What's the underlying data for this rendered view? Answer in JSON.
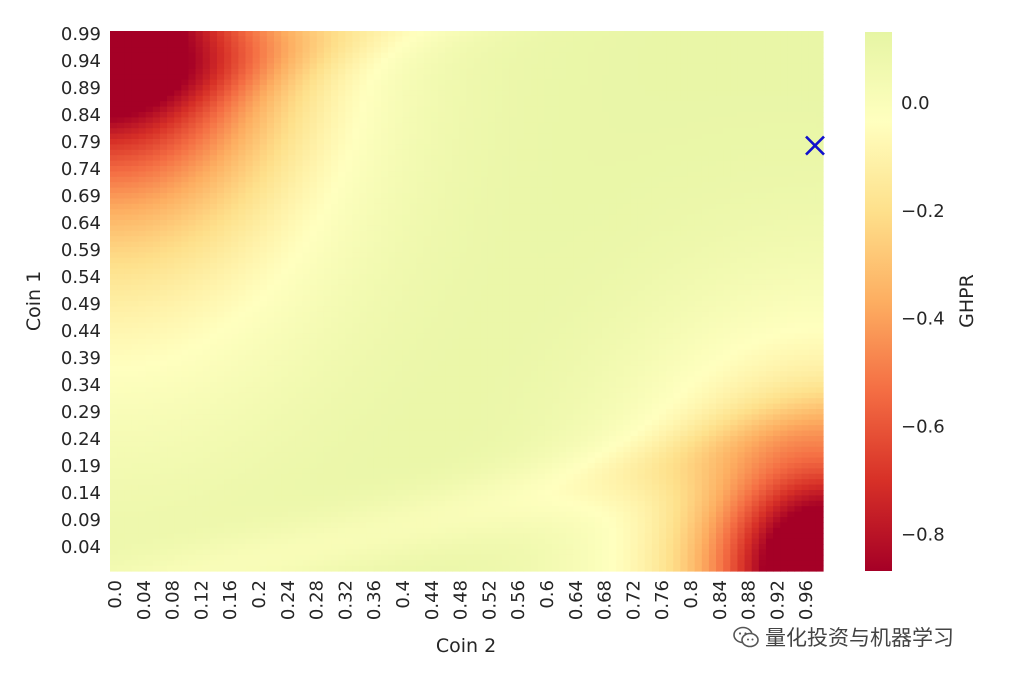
{
  "chart_data": {
    "type": "heatmap",
    "xlabel": "Coin 2",
    "ylabel": "Coin 1",
    "colorbar_label": "GHPR",
    "x_ticks": [
      "0.0",
      "0.04",
      "0.08",
      "0.12",
      "0.16",
      "0.2",
      "0.24",
      "0.28",
      "0.32",
      "0.36",
      "0.4",
      "0.44",
      "0.48",
      "0.52",
      "0.56",
      "0.6",
      "0.64",
      "0.68",
      "0.72",
      "0.76",
      "0.8",
      "0.84",
      "0.88",
      "0.92",
      "0.96"
    ],
    "y_ticks": [
      "0.99",
      "0.94",
      "0.89",
      "0.84",
      "0.79",
      "0.74",
      "0.69",
      "0.64",
      "0.59",
      "0.54",
      "0.49",
      "0.44",
      "0.39",
      "0.34",
      "0.29",
      "0.24",
      "0.19",
      "0.14",
      "0.09",
      "0.04"
    ],
    "colorbar_ticks": [
      "0.0",
      "−0.2",
      "−0.4",
      "−0.6",
      "−0.8"
    ],
    "colorbar_tick_values": [
      0.0,
      -0.2,
      -0.4,
      -0.6,
      -0.8
    ],
    "value_range": [
      -0.87,
      0.13
    ],
    "colormap": "RdYlGn (lower half)",
    "colormap_colors": [
      "#a50026",
      "#d73027",
      "#f46d43",
      "#fdae61",
      "#fee08b",
      "#ffffbf",
      "#e6f5a4"
    ],
    "grid_x_range": [
      0.0,
      0.99
    ],
    "grid_y_range": [
      0.0,
      0.99
    ],
    "corner_values": {
      "top_left": -0.72,
      "bottom_right": -0.87,
      "top_right": 0.1,
      "bottom_left": 0.1
    },
    "marker": {
      "x": 0.99,
      "y": 0.78,
      "symbol": "x",
      "color": "#1010cc"
    }
  },
  "watermark_text": "量化投资与机器学习"
}
